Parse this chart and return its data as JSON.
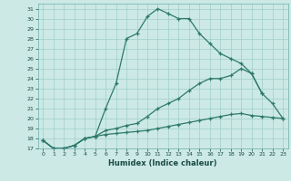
{
  "xlabel": "Humidex (Indice chaleur)",
  "line_color": "#2d7a6a",
  "bg_color": "#cce9e5",
  "grid_color": "#a0cfc9",
  "line1_x": [
    0,
    1,
    2,
    3,
    4,
    5,
    6,
    7,
    8,
    9,
    10,
    11,
    12,
    13,
    14,
    15,
    16,
    17,
    18,
    19,
    20,
    21
  ],
  "line1_y": [
    17.8,
    17.0,
    17.0,
    17.3,
    18.0,
    18.2,
    21.0,
    23.5,
    28.0,
    28.5,
    30.2,
    31.0,
    30.5,
    30.0,
    30.0,
    28.5,
    27.5,
    26.5,
    26.0,
    25.5,
    24.5,
    22.5
  ],
  "line2_x": [
    0,
    1,
    2,
    3,
    4,
    5,
    6,
    7,
    8,
    9,
    10,
    11,
    12,
    13,
    14,
    15,
    16,
    17,
    18,
    19,
    20,
    21,
    22,
    23
  ],
  "line2_y": [
    17.8,
    17.0,
    17.0,
    17.3,
    18.0,
    18.2,
    18.8,
    19.0,
    19.3,
    19.5,
    20.2,
    21.0,
    21.5,
    22.0,
    22.8,
    23.5,
    24.0,
    24.0,
    24.3,
    25.0,
    24.5,
    22.5,
    21.5,
    20.0
  ],
  "line3_x": [
    0,
    1,
    2,
    3,
    4,
    5,
    6,
    7,
    8,
    9,
    10,
    11,
    12,
    13,
    14,
    15,
    16,
    17,
    18,
    19,
    20,
    21,
    22,
    23
  ],
  "line3_y": [
    17.8,
    17.0,
    17.0,
    17.3,
    18.0,
    18.2,
    18.4,
    18.5,
    18.6,
    18.7,
    18.8,
    19.0,
    19.2,
    19.4,
    19.6,
    19.8,
    20.0,
    20.2,
    20.4,
    20.5,
    20.3,
    20.2,
    20.1,
    20.0
  ]
}
